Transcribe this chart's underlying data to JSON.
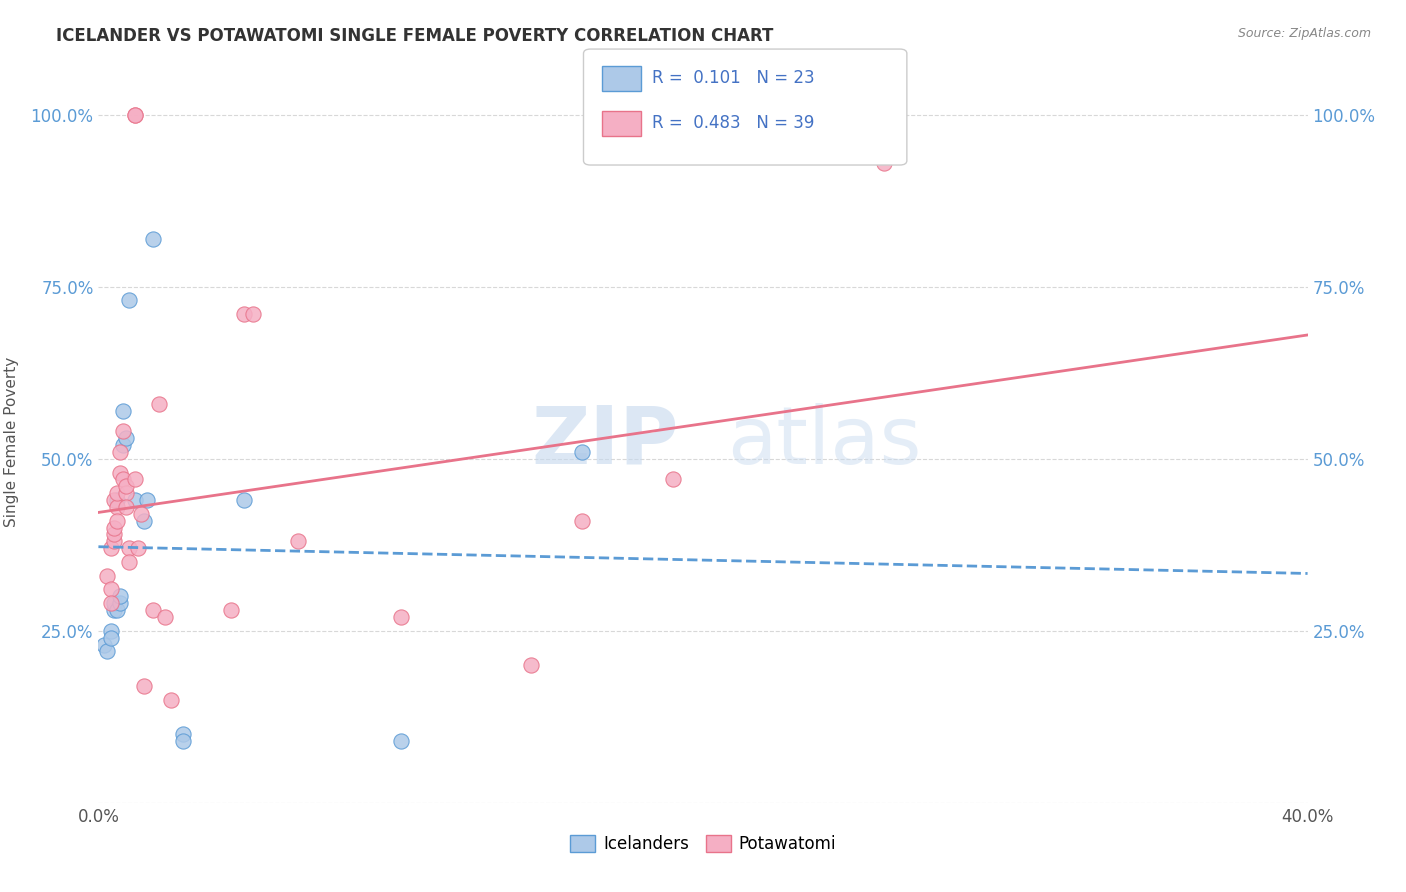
{
  "title": "ICELANDER VS POTAWATOMI SINGLE FEMALE POVERTY CORRELATION CHART",
  "source": "Source: ZipAtlas.com",
  "ylabel": "Single Female Poverty",
  "xlim": [
    0.0,
    0.4
  ],
  "ylim": [
    0.0,
    105.0
  ],
  "icelanders_R": 0.101,
  "icelanders_N": 23,
  "potawatomi_R": 0.483,
  "potawatomi_N": 39,
  "icelander_color": "#adc9e8",
  "potawatomi_color": "#f5afc4",
  "icelander_line_color": "#5b9bd5",
  "potawatomi_line_color": "#e8738a",
  "legend_R_color": "#4472c4",
  "watermark": "ZIPatlas",
  "icelander_points": [
    [
      0.002,
      23
    ],
    [
      0.003,
      22
    ],
    [
      0.004,
      25
    ],
    [
      0.004,
      24
    ],
    [
      0.005,
      28
    ],
    [
      0.005,
      29
    ],
    [
      0.006,
      28
    ],
    [
      0.006,
      44
    ],
    [
      0.007,
      29
    ],
    [
      0.007,
      30
    ],
    [
      0.008,
      57
    ],
    [
      0.008,
      52
    ],
    [
      0.009,
      53
    ],
    [
      0.01,
      73
    ],
    [
      0.012,
      44
    ],
    [
      0.015,
      41
    ],
    [
      0.016,
      44
    ],
    [
      0.018,
      82
    ],
    [
      0.028,
      10
    ],
    [
      0.028,
      9
    ],
    [
      0.048,
      44
    ],
    [
      0.1,
      9
    ],
    [
      0.16,
      51
    ]
  ],
  "potawatomi_points": [
    [
      0.003,
      33
    ],
    [
      0.004,
      31
    ],
    [
      0.004,
      29
    ],
    [
      0.004,
      37
    ],
    [
      0.005,
      38
    ],
    [
      0.005,
      39
    ],
    [
      0.005,
      44
    ],
    [
      0.005,
      40
    ],
    [
      0.006,
      43
    ],
    [
      0.006,
      41
    ],
    [
      0.006,
      45
    ],
    [
      0.007,
      51
    ],
    [
      0.007,
      48
    ],
    [
      0.008,
      47
    ],
    [
      0.008,
      54
    ],
    [
      0.009,
      45
    ],
    [
      0.009,
      43
    ],
    [
      0.009,
      46
    ],
    [
      0.01,
      37
    ],
    [
      0.01,
      35
    ],
    [
      0.012,
      100
    ],
    [
      0.012,
      100
    ],
    [
      0.012,
      47
    ],
    [
      0.013,
      37
    ],
    [
      0.014,
      42
    ],
    [
      0.015,
      17
    ],
    [
      0.018,
      28
    ],
    [
      0.02,
      58
    ],
    [
      0.022,
      27
    ],
    [
      0.024,
      15
    ],
    [
      0.044,
      28
    ],
    [
      0.048,
      71
    ],
    [
      0.051,
      71
    ],
    [
      0.066,
      38
    ],
    [
      0.1,
      27
    ],
    [
      0.143,
      20
    ],
    [
      0.16,
      41
    ],
    [
      0.19,
      47
    ],
    [
      0.26,
      93
    ]
  ],
  "background_color": "#ffffff",
  "grid_color": "#d8d8d8"
}
